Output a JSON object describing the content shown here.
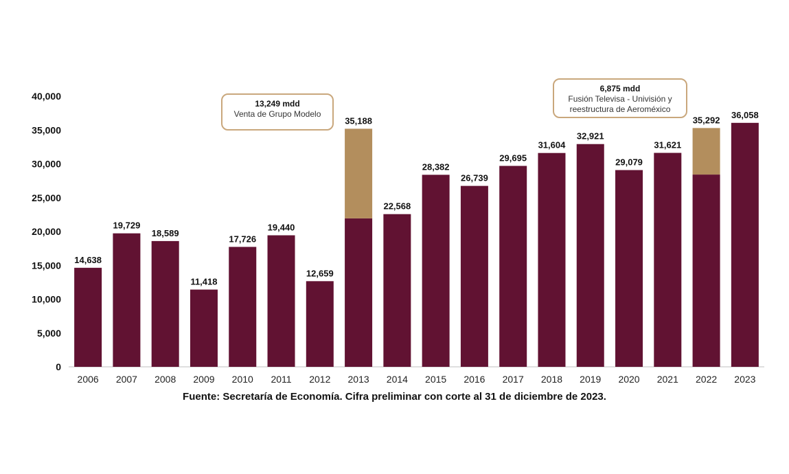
{
  "chart_data": {
    "type": "bar",
    "categories": [
      "2006",
      "2007",
      "2008",
      "2009",
      "2010",
      "2011",
      "2012",
      "2013",
      "2014",
      "2015",
      "2016",
      "2017",
      "2018",
      "2019",
      "2020",
      "2021",
      "2022",
      "2023"
    ],
    "totals": [
      14638,
      19729,
      18589,
      11418,
      17726,
      19440,
      12659,
      35188,
      22568,
      28382,
      26739,
      29695,
      31604,
      32921,
      29079,
      31621,
      35292,
      36058
    ],
    "total_labels": [
      "14,638",
      "19,729",
      "18,589",
      "11,418",
      "17,726",
      "19,440",
      "12,659",
      "35,188",
      "22,568",
      "28,382",
      "26,739",
      "29,695",
      "31,604",
      "32,921",
      "29,079",
      "31,621",
      "35,292",
      "36,058"
    ],
    "series": [
      {
        "values": [
          14638,
          19729,
          18589,
          11418,
          17726,
          19440,
          12659,
          21939,
          22568,
          28382,
          26739,
          29695,
          31604,
          32921,
          29079,
          31621,
          28417,
          36058
        ],
        "color": "#611232"
      },
      {
        "values": [
          0,
          0,
          0,
          0,
          0,
          0,
          0,
          13249,
          0,
          0,
          0,
          0,
          0,
          0,
          0,
          0,
          6875,
          0
        ],
        "color": "#b38e5d"
      }
    ],
    "yticks": [
      "0",
      "5,000",
      "10,000",
      "15,000",
      "20,000",
      "25,000",
      "30,000",
      "35,000",
      "40,000"
    ],
    "ylim": [
      0,
      40000
    ],
    "annotations": [
      {
        "category": "2013",
        "value": "13,249 mdd",
        "lines": [
          "Venta de Grupo Modelo"
        ]
      },
      {
        "category": "2022",
        "value": "6,875 mdd",
        "lines": [
          "Fusión Televisa - Univisión y",
          "reestructura de Aeroméxico"
        ]
      }
    ],
    "source": "Fuente: Secretaría de Economía. Cifra preliminar con corte al 31 de diciembre de 2023."
  }
}
